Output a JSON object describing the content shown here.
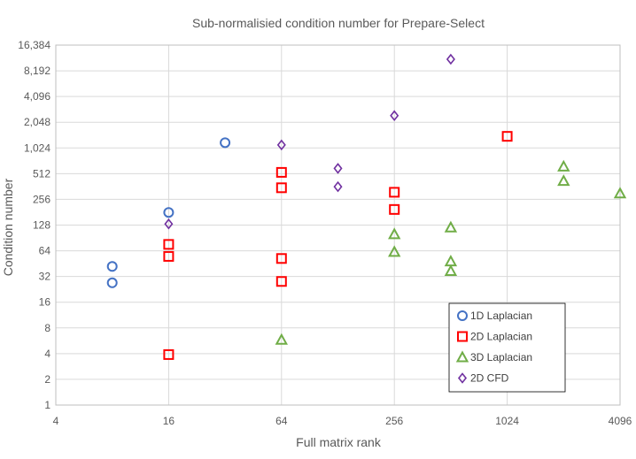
{
  "chart_data": {
    "type": "scatter",
    "title": "Sub-normalisied condition number for Prepare-Select",
    "xlabel": "Full matrix rank",
    "ylabel": "Condition number",
    "x_scale": "log2",
    "y_scale": "log2",
    "xlim": [
      4,
      4096
    ],
    "ylim": [
      1,
      16384
    ],
    "x_ticks": [
      4,
      16,
      64,
      256,
      1024,
      4096
    ],
    "x_tick_labels": [
      "4",
      "16",
      "64",
      "256",
      "1024",
      "4096"
    ],
    "y_ticks": [
      1,
      2,
      4,
      8,
      16,
      32,
      64,
      128,
      256,
      512,
      1024,
      2048,
      4096,
      8192,
      16384
    ],
    "y_tick_labels": [
      "1",
      "2",
      "4",
      "8",
      "16",
      "32",
      "64",
      "128",
      "256",
      "512",
      "1,024",
      "2,048",
      "4,096",
      "8,192",
      "16,384"
    ],
    "legend_position": "bottom-right",
    "series": [
      {
        "name": "1D Laplacian",
        "marker": "circle",
        "color": "#4472C4",
        "points": [
          [
            8,
            27
          ],
          [
            8,
            42
          ],
          [
            16,
            180
          ],
          [
            32,
            1180
          ]
        ]
      },
      {
        "name": "2D Laplacian",
        "marker": "square",
        "color": "#FF0000",
        "points": [
          [
            16,
            3.9
          ],
          [
            16,
            55
          ],
          [
            16,
            76
          ],
          [
            64,
            28
          ],
          [
            64,
            52
          ],
          [
            64,
            350
          ],
          [
            64,
            530
          ],
          [
            256,
            195
          ],
          [
            256,
            310
          ],
          [
            1024,
            1400
          ]
        ]
      },
      {
        "name": "3D Laplacian",
        "marker": "triangle",
        "color": "#70AD47",
        "points": [
          [
            64,
            5.8
          ],
          [
            256,
            62
          ],
          [
            256,
            100
          ],
          [
            512,
            37
          ],
          [
            512,
            48
          ],
          [
            512,
            120
          ],
          [
            2048,
            420
          ],
          [
            2048,
            620
          ],
          [
            4096,
            300
          ]
        ]
      },
      {
        "name": "2D CFD",
        "marker": "diamond",
        "color": "#7030A0",
        "points": [
          [
            16,
            132
          ],
          [
            64,
            1110
          ],
          [
            128,
            360
          ],
          [
            128,
            590
          ],
          [
            256,
            2450
          ],
          [
            512,
            11200
          ]
        ]
      }
    ]
  }
}
